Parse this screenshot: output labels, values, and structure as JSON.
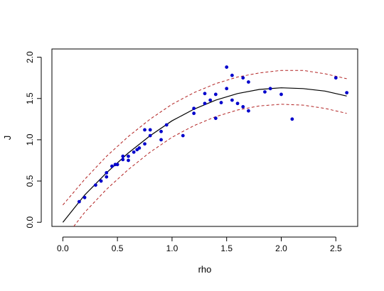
{
  "chart_data": {
    "type": "scatter",
    "title": "",
    "xlabel": "rho",
    "ylabel": "J",
    "xlim": [
      -0.1,
      2.7
    ],
    "ylim": [
      -0.05,
      2.1
    ],
    "x_ticks": [
      0.0,
      0.5,
      1.0,
      1.5,
      2.0,
      2.5
    ],
    "x_tick_labels": [
      "0.0",
      "0.5",
      "1.0",
      "1.5",
      "2.0",
      "2.5"
    ],
    "y_ticks": [
      0.0,
      0.5,
      1.0,
      1.5,
      2.0
    ],
    "y_tick_labels": [
      "0.0",
      "0.5",
      "1.0",
      "1.5",
      "2.0"
    ],
    "grid": false,
    "legend": "none",
    "colors": {
      "points": "#0000cc",
      "fit": "#000000",
      "bands": "#b22222"
    },
    "series": [
      {
        "kind": "points",
        "x": [
          0.15,
          0.2,
          0.3,
          0.35,
          0.4,
          0.4,
          0.45,
          0.48,
          0.5,
          0.55,
          0.55,
          0.6,
          0.6,
          0.65,
          0.68,
          0.7,
          0.75,
          0.75,
          0.8,
          0.8,
          0.9,
          0.9,
          0.95,
          1.1,
          1.2,
          1.2,
          1.3,
          1.3,
          1.35,
          1.4,
          1.4,
          1.45,
          1.5,
          1.5,
          1.55,
          1.55,
          1.6,
          1.65,
          1.65,
          1.7,
          1.7,
          1.85,
          1.9,
          2.0,
          2.1,
          2.5,
          2.6
        ],
        "y": [
          0.25,
          0.3,
          0.45,
          0.5,
          0.55,
          0.6,
          0.68,
          0.7,
          0.7,
          0.76,
          0.8,
          0.75,
          0.8,
          0.85,
          0.88,
          0.9,
          0.95,
          1.12,
          1.05,
          1.12,
          1.0,
          1.1,
          1.18,
          1.05,
          1.32,
          1.38,
          1.44,
          1.56,
          1.48,
          1.26,
          1.55,
          1.45,
          1.88,
          1.62,
          1.48,
          1.78,
          1.44,
          1.4,
          1.75,
          1.35,
          1.7,
          1.58,
          1.62,
          1.55,
          1.25,
          1.75,
          1.57
        ]
      },
      {
        "kind": "fit",
        "x": [
          0.0,
          0.2,
          0.4,
          0.6,
          0.8,
          1.0,
          1.2,
          1.4,
          1.6,
          1.8,
          2.0,
          2.2,
          2.4,
          2.6
        ],
        "y": [
          0.0,
          0.33,
          0.6,
          0.84,
          1.05,
          1.23,
          1.37,
          1.48,
          1.56,
          1.61,
          1.63,
          1.62,
          1.59,
          1.53
        ]
      },
      {
        "kind": "upper-band",
        "x": [
          0.0,
          0.2,
          0.4,
          0.6,
          0.8,
          1.0,
          1.2,
          1.4,
          1.6,
          1.8,
          2.0,
          2.2,
          2.4,
          2.6
        ],
        "y": [
          0.21,
          0.52,
          0.8,
          1.04,
          1.25,
          1.43,
          1.57,
          1.68,
          1.76,
          1.81,
          1.84,
          1.84,
          1.8,
          1.74
        ]
      },
      {
        "kind": "lower-band",
        "x": [
          0.1,
          0.2,
          0.4,
          0.6,
          0.8,
          1.0,
          1.2,
          1.4,
          1.6,
          1.8,
          2.0,
          2.2,
          2.4,
          2.6
        ],
        "y": [
          -0.05,
          0.12,
          0.4,
          0.64,
          0.85,
          1.03,
          1.17,
          1.28,
          1.36,
          1.41,
          1.43,
          1.42,
          1.38,
          1.32
        ]
      }
    ]
  }
}
